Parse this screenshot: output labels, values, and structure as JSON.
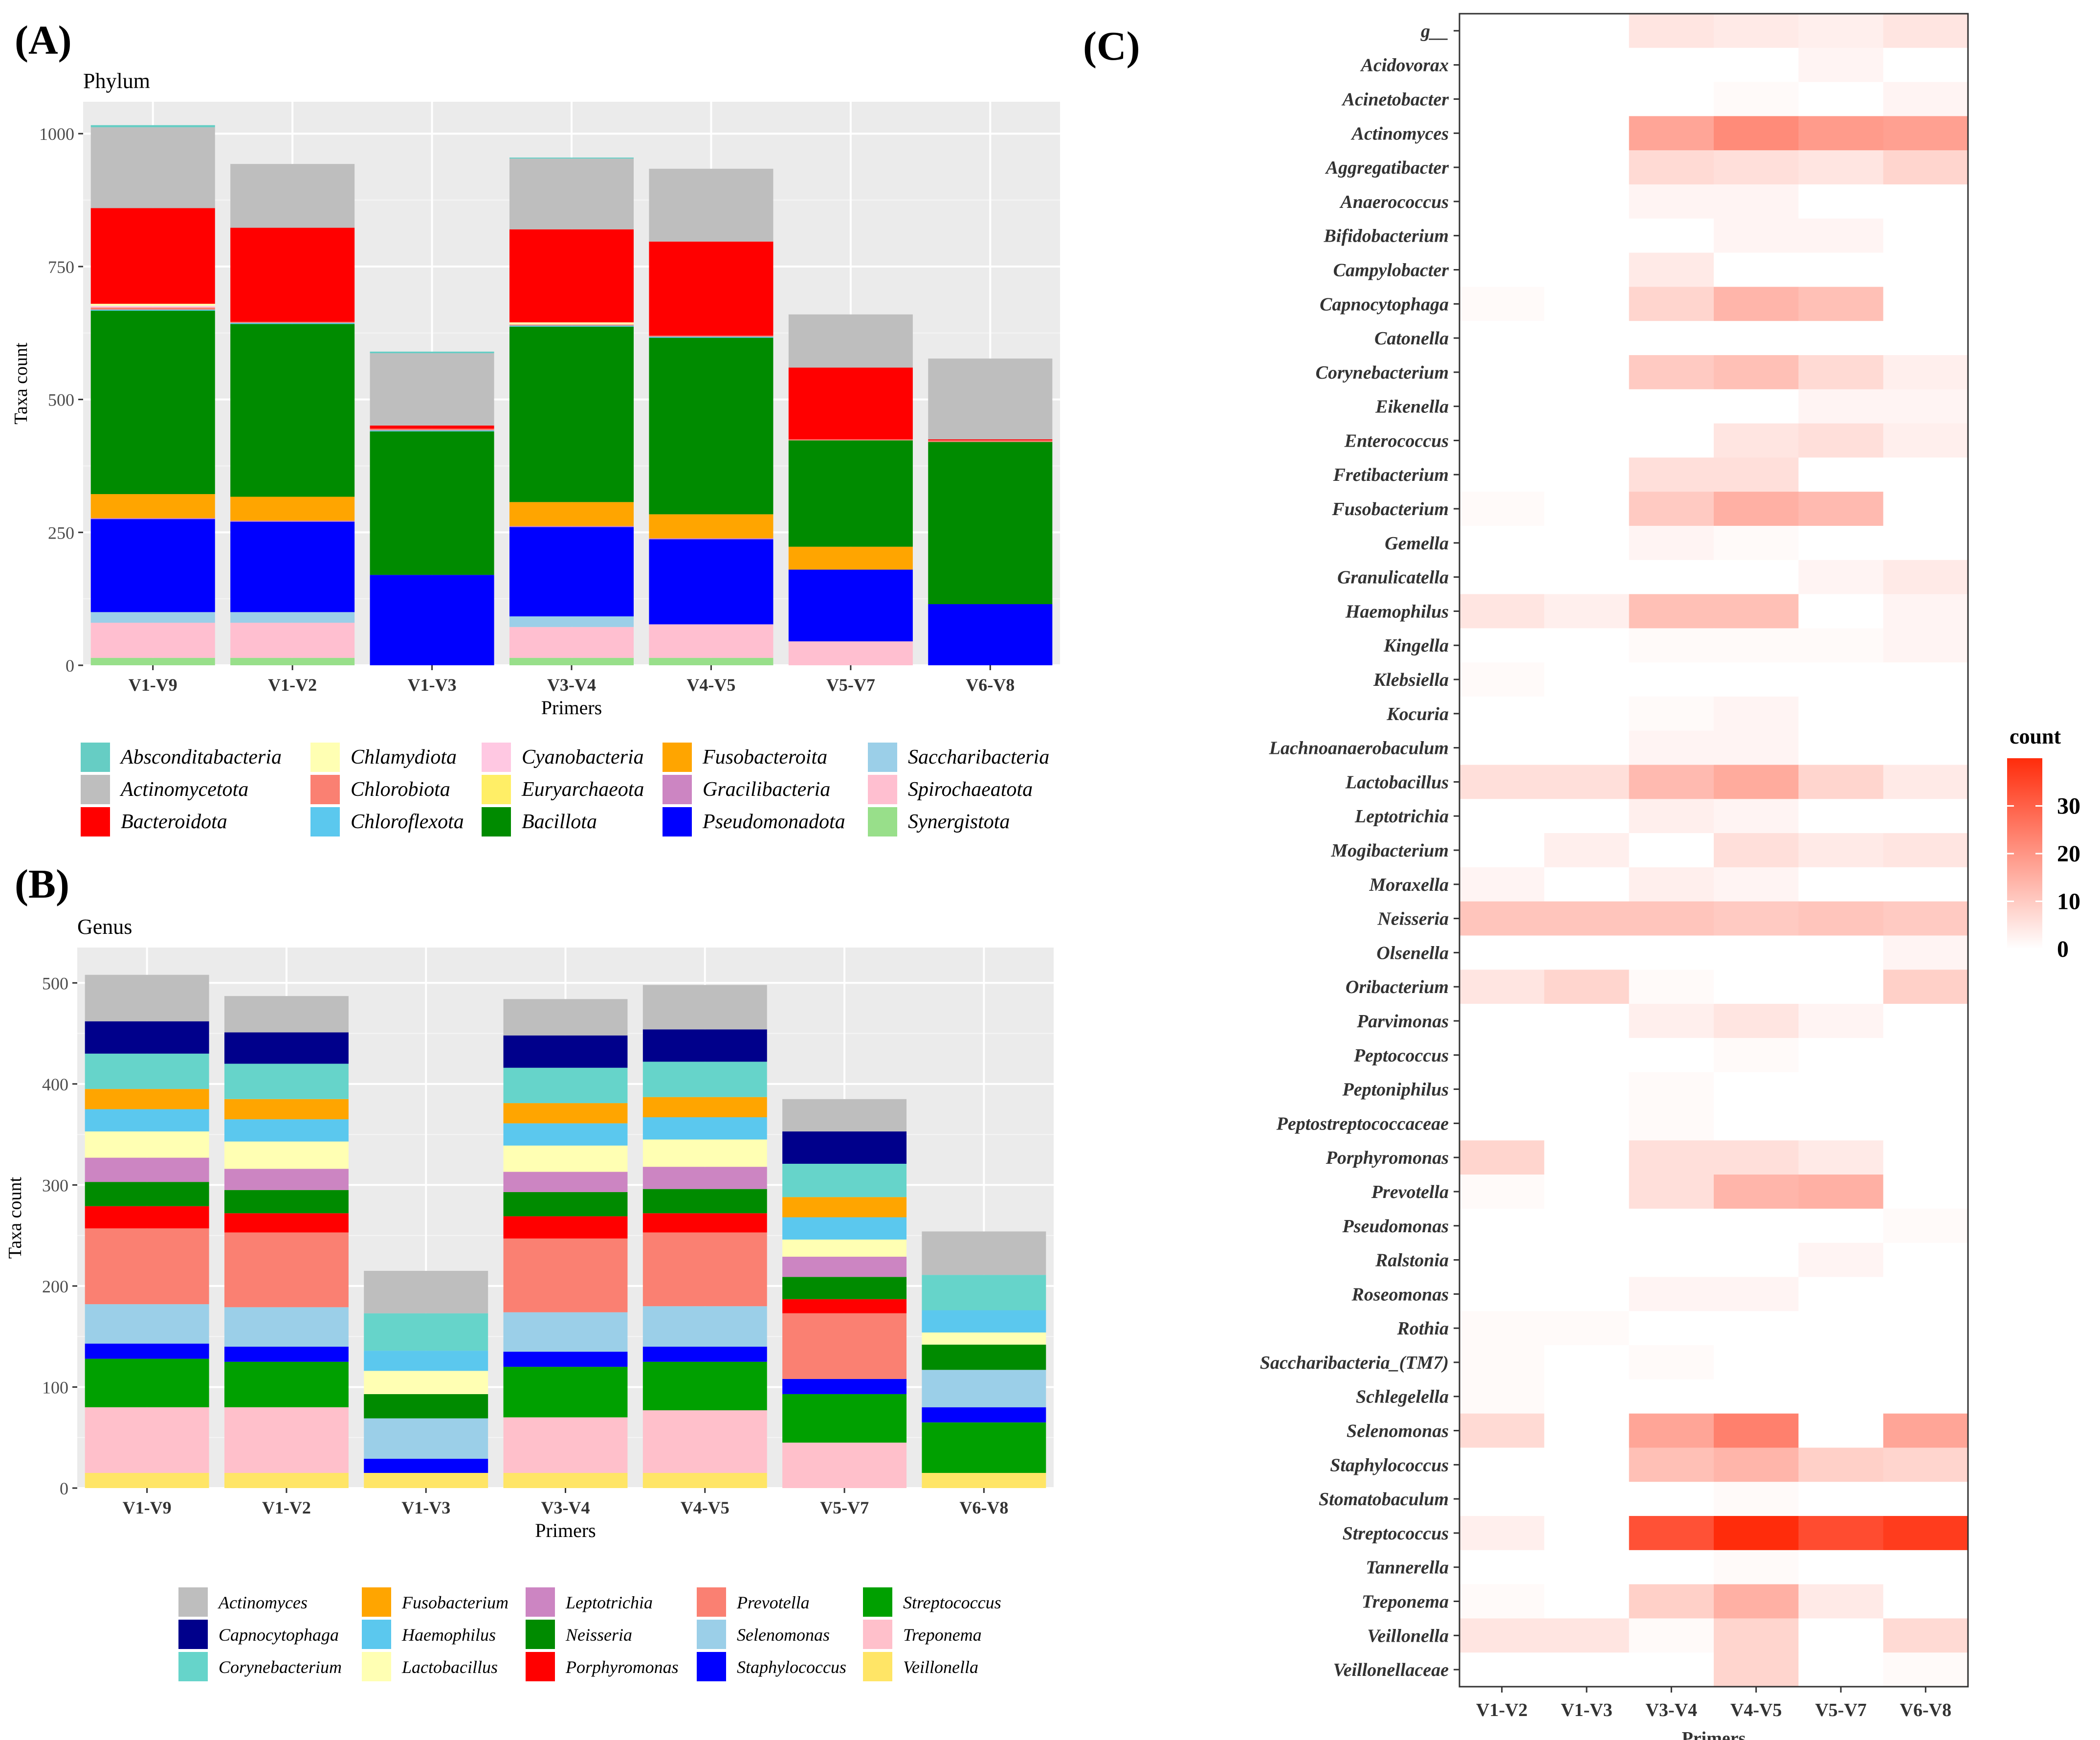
{
  "panel_labels": {
    "a": "(A)",
    "b": "(B)",
    "c": "(C)"
  },
  "chart_data": [
    {
      "type": "bar",
      "stacked": true,
      "title": "Phylum",
      "xlabel": "Primers",
      "ylabel": "Taxa count",
      "ylim": [
        0,
        1060
      ],
      "yticks": [
        0,
        250,
        500,
        750,
        1000
      ],
      "categories": [
        "V1-V9",
        "V1-V2",
        "V1-V3",
        "V3-V4",
        "V4-V5",
        "V5-V7",
        "V6-V8"
      ],
      "series": [
        {
          "name": "Synergistota",
          "color": "#98DF8A",
          "values": [
            14,
            14,
            0,
            14,
            14,
            0,
            0
          ]
        },
        {
          "name": "Spirochaeatota",
          "color": "#FFBFD0",
          "values": [
            66,
            66,
            0,
            58,
            63,
            45,
            0
          ]
        },
        {
          "name": "Saccharibacteria",
          "color": "#9BCFE8",
          "values": [
            20,
            20,
            0,
            20,
            0,
            0,
            0
          ]
        },
        {
          "name": "Pseudomonadota",
          "color": "#0000FF",
          "values": [
            175,
            170,
            170,
            168,
            160,
            135,
            115
          ]
        },
        {
          "name": "Gracilibacteria",
          "color": "#CC85C2",
          "values": [
            2,
            2,
            0,
            2,
            2,
            0,
            0
          ]
        },
        {
          "name": "Fusobacteroita",
          "color": "#FFA500",
          "values": [
            45,
            45,
            0,
            45,
            45,
            43,
            0
          ]
        },
        {
          "name": "Euryarchaeota",
          "color": "#FFEE66",
          "values": [
            0,
            0,
            0,
            0,
            0,
            0,
            0
          ]
        },
        {
          "name": "Bacillota",
          "color": "#008B00",
          "values": [
            345,
            325,
            270,
            330,
            332,
            200,
            305
          ]
        },
        {
          "name": "Chloroflexota",
          "color": "#5BC8EE",
          "values": [
            2,
            2,
            2,
            2,
            2,
            0,
            0
          ]
        },
        {
          "name": "Chlorobiota",
          "color": "#FA8072",
          "values": [
            4,
            2,
            3,
            2,
            2,
            2,
            3
          ]
        },
        {
          "name": "Cyanobacteria",
          "color": "#FFC8E2",
          "values": [
            3,
            0,
            0,
            0,
            0,
            0,
            0
          ]
        },
        {
          "name": "Chlamydiota",
          "color": "#FFFFB3",
          "values": [
            4,
            0,
            0,
            4,
            0,
            0,
            0
          ]
        },
        {
          "name": "Bacteroidota",
          "color": "#FF0000",
          "values": [
            180,
            177,
            6,
            175,
            177,
            135,
            2
          ]
        },
        {
          "name": "Actinomycetota",
          "color": "#BEBEBE",
          "values": [
            152,
            120,
            136,
            133,
            137,
            100,
            152
          ]
        },
        {
          "name": "Absconditabacteria",
          "color": "#66CDC4",
          "values": [
            4,
            0,
            3,
            2,
            0,
            0,
            0
          ]
        }
      ],
      "legend": {
        "position": "bottom",
        "columns": [
          [
            "Absconditabacteria",
            "Actinomycetota",
            "Bacteroidota"
          ],
          [
            "Chlamydiota",
            "Chlorobiota",
            "Chloroflexota"
          ],
          [
            "Cyanobacteria",
            "Euryarchaeota",
            "Bacillota"
          ],
          [
            "Fusobacteroita",
            "Gracilibacteria",
            "Pseudomonadota"
          ],
          [
            "Saccharibacteria",
            "Spirochaeatota",
            "Synergistota"
          ]
        ]
      }
    },
    {
      "type": "bar",
      "stacked": true,
      "title": "Genus",
      "xlabel": "Primers",
      "ylabel": "Taxa count",
      "ylim": [
        0,
        535
      ],
      "yticks": [
        0,
        100,
        200,
        300,
        400,
        500
      ],
      "categories": [
        "V1-V9",
        "V1-V2",
        "V1-V3",
        "V3-V4",
        "V4-V5",
        "V5-V7",
        "V6-V8"
      ],
      "series": [
        {
          "name": "Veillonella",
          "color": "#FFE566",
          "values": [
            15,
            15,
            15,
            15,
            15,
            0,
            15
          ]
        },
        {
          "name": "Treponema",
          "color": "#FFC0CB",
          "values": [
            65,
            65,
            0,
            55,
            62,
            45,
            0
          ]
        },
        {
          "name": "Streptococcus",
          "color": "#00A000",
          "values": [
            48,
            45,
            0,
            50,
            48,
            48,
            50
          ]
        },
        {
          "name": "Staphylococcus",
          "color": "#0000FF",
          "values": [
            15,
            15,
            14,
            15,
            15,
            15,
            15
          ]
        },
        {
          "name": "Selenomonas",
          "color": "#9BCFE8",
          "values": [
            39,
            39,
            40,
            39,
            40,
            0,
            37
          ]
        },
        {
          "name": "Prevotella",
          "color": "#FA8072",
          "values": [
            75,
            74,
            0,
            73,
            73,
            65,
            0
          ]
        },
        {
          "name": "Porphyromonas",
          "color": "#FF0000",
          "values": [
            22,
            19,
            0,
            22,
            19,
            14,
            0
          ]
        },
        {
          "name": "Neisseria",
          "color": "#008B00",
          "values": [
            24,
            23,
            24,
            24,
            24,
            22,
            25
          ]
        },
        {
          "name": "Leptotrichia",
          "color": "#CC85C2",
          "values": [
            24,
            21,
            0,
            20,
            22,
            20,
            0
          ]
        },
        {
          "name": "Lactobacillus",
          "color": "#FFFFB3",
          "values": [
            26,
            27,
            23,
            26,
            27,
            17,
            12
          ]
        },
        {
          "name": "Haemophilus",
          "color": "#5BC8EE",
          "values": [
            22,
            22,
            20,
            22,
            22,
            22,
            22
          ]
        },
        {
          "name": "Fusobacterium",
          "color": "#FFA500",
          "values": [
            20,
            20,
            0,
            20,
            20,
            20,
            0
          ]
        },
        {
          "name": "Corynebacterium",
          "color": "#66D4CA",
          "values": [
            35,
            35,
            37,
            35,
            35,
            33,
            35
          ]
        },
        {
          "name": "Capnocytophaga",
          "color": "#00008B",
          "values": [
            32,
            31,
            0,
            32,
            32,
            32,
            0
          ]
        },
        {
          "name": "Actinomyces",
          "color": "#BEBEBE",
          "values": [
            46,
            36,
            42,
            36,
            44,
            32,
            43
          ]
        }
      ],
      "legend": {
        "position": "bottom",
        "columns": [
          [
            "Actinomyces",
            "Capnocytophaga",
            "Corynebacterium"
          ],
          [
            "Fusobacterium",
            "Haemophilus",
            "Lactobacillus"
          ],
          [
            "Leptotrichia",
            "Neisseria",
            "Porphyromonas"
          ],
          [
            "Prevotella",
            "Selenomonas",
            "Staphylococcus"
          ],
          [
            "Streptococcus",
            "Treponema",
            "Veillonella"
          ]
        ]
      }
    },
    {
      "type": "heatmap",
      "xlabel": "Primers",
      "ylabel": "",
      "x": [
        "V1-V2",
        "V1-V3",
        "V3-V4",
        "V4-V5",
        "V5-V7",
        "V6-V8"
      ],
      "y": [
        "g__",
        "Acidovorax",
        "Acinetobacter",
        "Actinomyces",
        "Aggregatibacter",
        "Anaerococcus",
        "Bifidobacterium",
        "Campylobacter",
        "Capnocytophaga",
        "Catonella",
        "Corynebacterium",
        "Eikenella",
        "Enterococcus",
        "Fretibacterium",
        "Fusobacterium",
        "Gemella",
        "Granulicatella",
        "Haemophilus",
        "Kingella",
        "Klebsiella",
        "Kocuria",
        "Lachnoanaerobaculum",
        "Lactobacillus",
        "Leptotrichia",
        "Mogibacterium",
        "Moraxella",
        "Neisseria",
        "Olsenella",
        "Oribacterium",
        "Parvimonas",
        "Peptococcus",
        "Peptoniphilus",
        "Peptostreptococcaceae",
        "Porphyromonas",
        "Prevotella",
        "Pseudomonas",
        "Ralstonia",
        "Roseomonas",
        "Rothia",
        "Saccharibacteria_(TM7)",
        "Schlegelella",
        "Selenomonas",
        "Staphylococcus",
        "Stomatobaculum",
        "Streptococcus",
        "Tannerella",
        "Treponema",
        "Veillonella",
        "Veillonellaceae"
      ],
      "values": [
        [
          0,
          0,
          5,
          4,
          3,
          5
        ],
        [
          0,
          0,
          0,
          0,
          2,
          0
        ],
        [
          0,
          0,
          0,
          1,
          0,
          2
        ],
        [
          0,
          0,
          17,
          22,
          19,
          18
        ],
        [
          0,
          0,
          7,
          6,
          5,
          8
        ],
        [
          0,
          0,
          2,
          2,
          0,
          0
        ],
        [
          0,
          0,
          0,
          2,
          2,
          0
        ],
        [
          0,
          0,
          4,
          0,
          0,
          0
        ],
        [
          1,
          0,
          8,
          14,
          12,
          0
        ],
        [
          0,
          0,
          0,
          0,
          0,
          0
        ],
        [
          0,
          0,
          10,
          12,
          7,
          3
        ],
        [
          0,
          0,
          0,
          0,
          2,
          2
        ],
        [
          0,
          0,
          0,
          5,
          6,
          3
        ],
        [
          0,
          0,
          6,
          6,
          0,
          0
        ],
        [
          1,
          0,
          10,
          15,
          13,
          0
        ],
        [
          0,
          0,
          2,
          1,
          0,
          0
        ],
        [
          0,
          0,
          0,
          0,
          2,
          4
        ],
        [
          5,
          3,
          12,
          12,
          0,
          2
        ],
        [
          0,
          0,
          1,
          1,
          1,
          2
        ],
        [
          1,
          0,
          0,
          0,
          0,
          0
        ],
        [
          0,
          0,
          1,
          2,
          0,
          0
        ],
        [
          0,
          0,
          2,
          2,
          0,
          0
        ],
        [
          6,
          6,
          13,
          16,
          8,
          4
        ],
        [
          0,
          0,
          3,
          2,
          0,
          0
        ],
        [
          0,
          3,
          0,
          6,
          4,
          5
        ],
        [
          2,
          0,
          3,
          2,
          0,
          0
        ],
        [
          11,
          11,
          11,
          10,
          11,
          10
        ],
        [
          0,
          0,
          0,
          0,
          0,
          2
        ],
        [
          5,
          8,
          1,
          0,
          0,
          9
        ],
        [
          0,
          0,
          3,
          5,
          2,
          0
        ],
        [
          0,
          0,
          0,
          1,
          0,
          0
        ],
        [
          0,
          0,
          1,
          0,
          0,
          0
        ],
        [
          0,
          0,
          1,
          0,
          0,
          0
        ],
        [
          8,
          0,
          6,
          6,
          4,
          0
        ],
        [
          1,
          0,
          6,
          14,
          15,
          0
        ],
        [
          0,
          0,
          0,
          0,
          0,
          1
        ],
        [
          0,
          0,
          0,
          0,
          2,
          0
        ],
        [
          0,
          0,
          2,
          2,
          0,
          0
        ],
        [
          1,
          1,
          0,
          0,
          0,
          0
        ],
        [
          1,
          0,
          1,
          0,
          0,
          0
        ],
        [
          1,
          0,
          0,
          0,
          0,
          0
        ],
        [
          7,
          0,
          17,
          24,
          0,
          17
        ],
        [
          0,
          0,
          12,
          14,
          9,
          8
        ],
        [
          0,
          0,
          0,
          1,
          0,
          0
        ],
        [
          3,
          0,
          33,
          40,
          34,
          37
        ],
        [
          0,
          0,
          0,
          1,
          0,
          0
        ],
        [
          1,
          0,
          9,
          15,
          4,
          0
        ],
        [
          5,
          5,
          1,
          8,
          0,
          7
        ],
        [
          0,
          0,
          0,
          8,
          0,
          1
        ]
      ],
      "colorbar": {
        "title": "count",
        "low": "#FFFFFF",
        "high": "#FF2C0B",
        "range": [
          0,
          40
        ],
        "ticks": [
          0,
          10,
          20,
          30
        ]
      }
    }
  ]
}
